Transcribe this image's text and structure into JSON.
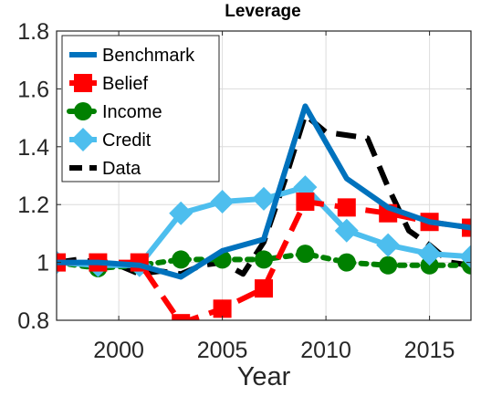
{
  "chart_data": {
    "type": "line",
    "title": "Leverage",
    "xlabel": "Year",
    "ylabel": "",
    "xlim": [
      1997,
      2017
    ],
    "ylim": [
      0.8,
      1.8
    ],
    "xticks": [
      2000,
      2005,
      2010,
      2015
    ],
    "yticks": [
      0.8,
      1.0,
      1.2,
      1.4,
      1.6,
      1.8
    ],
    "xtick_labels": [
      "2000",
      "2005",
      "2010",
      "2015"
    ],
    "ytick_labels": [
      "0.8",
      "1",
      "1.2",
      "1.4",
      "1.6",
      "1.8"
    ],
    "grid": true,
    "legend_position": "top-left",
    "series": [
      {
        "name": "Benchmark",
        "color": "#0072BD",
        "style": "solid",
        "marker": "none",
        "x": [
          1997,
          1999,
          2001,
          2003,
          2005,
          2007,
          2009,
          2011,
          2013,
          2015,
          2017
        ],
        "y": [
          1.0,
          1.0,
          0.99,
          0.95,
          1.04,
          1.08,
          1.54,
          1.29,
          1.19,
          1.14,
          1.12
        ]
      },
      {
        "name": "Belief",
        "color": "#FF0000",
        "style": "dashed",
        "marker": "square",
        "x": [
          1997,
          1999,
          2001,
          2003,
          2005,
          2007,
          2009,
          2011,
          2013,
          2015,
          2017
        ],
        "y": [
          1.0,
          1.0,
          1.0,
          0.79,
          0.84,
          0.91,
          1.21,
          1.19,
          1.17,
          1.14,
          1.12
        ]
      },
      {
        "name": "Income",
        "color": "#008000",
        "style": "dotted",
        "marker": "circle",
        "x": [
          1997,
          1999,
          2001,
          2003,
          2005,
          2007,
          2009,
          2011,
          2013,
          2015,
          2017
        ],
        "y": [
          1.0,
          0.98,
          0.99,
          1.01,
          1.01,
          1.01,
          1.03,
          1.0,
          0.99,
          0.99,
          0.99
        ]
      },
      {
        "name": "Credit",
        "color": "#4DBEEE",
        "style": "solid",
        "marker": "diamond",
        "x": [
          1997,
          1999,
          2001,
          2003,
          2005,
          2007,
          2009,
          2011,
          2013,
          2015,
          2017
        ],
        "y": [
          1.0,
          0.99,
          0.99,
          1.17,
          1.21,
          1.22,
          1.26,
          1.11,
          1.06,
          1.03,
          1.02
        ]
      },
      {
        "name": "Data",
        "color": "#000000",
        "style": "dashed",
        "marker": "none",
        "x": [
          1997,
          1998,
          1999,
          2000,
          2001,
          2002,
          2003,
          2004,
          2005,
          2006,
          2007,
          2008,
          2009,
          2010,
          2011,
          2012,
          2013,
          2014,
          2015,
          2016,
          2017
        ],
        "y": [
          1.0,
          1.01,
          1.0,
          0.99,
          0.96,
          0.97,
          0.96,
          0.99,
          1.0,
          0.96,
          1.07,
          1.28,
          1.51,
          1.45,
          1.44,
          1.43,
          1.26,
          1.11,
          1.06,
          1.0,
          0.99
        ]
      }
    ]
  }
}
